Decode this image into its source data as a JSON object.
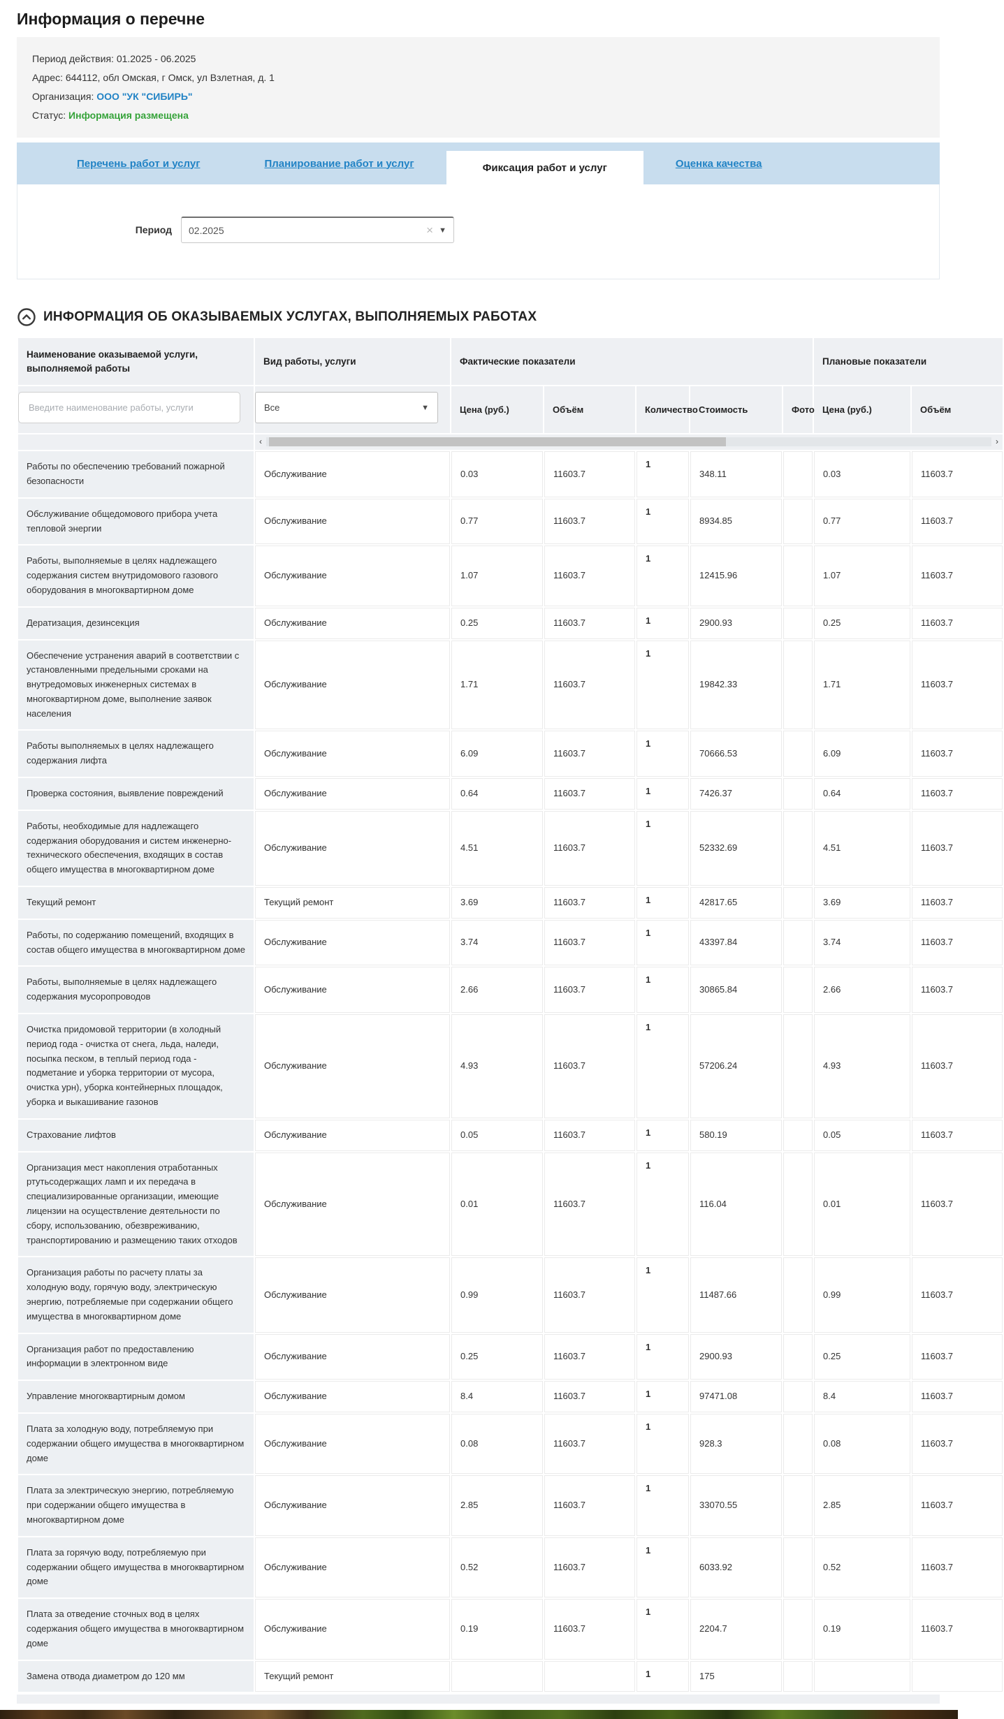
{
  "page": {
    "title": "Информация о перечне"
  },
  "info": {
    "period_label": "Период действия:",
    "period_value": "01.2025 - 06.2025",
    "address_label": "Адрес:",
    "address_value": "644112, обл Омская, г Омск, ул Взлетная, д. 1",
    "org_label": "Организация:",
    "org_value": "ООО \"УК \"СИБИРЬ\"",
    "status_label": "Статус:",
    "status_value": "Информация размещена"
  },
  "tabs": [
    {
      "label": "Перечень работ и услуг",
      "active": false
    },
    {
      "label": "Планирование работ и услуг",
      "active": false
    },
    {
      "label": "Фиксация работ и услуг",
      "active": true
    },
    {
      "label": "Оценка качества",
      "active": false
    }
  ],
  "period_filter": {
    "label": "Период",
    "value": "02.2025",
    "clear_icon": "×",
    "dropdown_icon": "▼"
  },
  "section": {
    "title": "ИНФОРМАЦИЯ ОБ ОКАЗЫВАЕМЫХ УСЛУГАХ, ВЫПОЛНЯЕМЫХ РАБОТАХ"
  },
  "colors": {
    "link_blue": "#2283c5",
    "status_green": "#36a33a",
    "tabbar_blue": "#c8ddee",
    "header_bg": "#eef0f3",
    "name_col_bg": "#edf0f3"
  },
  "table": {
    "col_name_header": "Наименование оказываемой услуги, выполняемой работы",
    "col_type_header": "Вид работы, услуги",
    "group_fact": "Фактические показатели",
    "group_plan": "Плановые показатели",
    "filter_placeholder": "Введите наименование работы, услуги",
    "filter_type_value": "Все",
    "sub_headers": [
      "Цена (руб.)",
      "Объём",
      "Количество",
      "Стоимость",
      "Фото",
      "Цена (руб.)",
      "Объём"
    ],
    "rows": [
      {
        "name": "Работы по обеспечению требований пожарной безопасности",
        "type": "Обслуживание",
        "fact_price": "0.03",
        "fact_volume": "11603.7",
        "quantity": "1",
        "cost": "348.11",
        "photo": "",
        "plan_price": "0.03",
        "plan_volume": "11603.7"
      },
      {
        "name": "Обслуживание общедомового прибора учета тепловой энергии",
        "type": "Обслуживание",
        "fact_price": "0.77",
        "fact_volume": "11603.7",
        "quantity": "1",
        "cost": "8934.85",
        "photo": "",
        "plan_price": "0.77",
        "plan_volume": "11603.7"
      },
      {
        "name": "Работы, выполняемые в целях надлежащего содержания систем внутридомового газового оборудования в многоквартирном доме",
        "type": "Обслуживание",
        "fact_price": "1.07",
        "fact_volume": "11603.7",
        "quantity": "1",
        "cost": "12415.96",
        "photo": "",
        "plan_price": "1.07",
        "plan_volume": "11603.7"
      },
      {
        "name": "Дератизация, дезинсекция",
        "type": "Обслуживание",
        "fact_price": "0.25",
        "fact_volume": "11603.7",
        "quantity": "1",
        "cost": "2900.93",
        "photo": "",
        "plan_price": "0.25",
        "plan_volume": "11603.7"
      },
      {
        "name": "Обеспечение устранения аварий в соответствии с установленными предельными сроками на внутредомовых инженерных системах в многоквартирном доме, выполнение заявок населения",
        "type": "Обслуживание",
        "fact_price": "1.71",
        "fact_volume": "11603.7",
        "quantity": "1",
        "cost": "19842.33",
        "photo": "",
        "plan_price": "1.71",
        "plan_volume": "11603.7"
      },
      {
        "name": "Работы выполняемых в целях надлежащего содержания лифта",
        "type": "Обслуживание",
        "fact_price": "6.09",
        "fact_volume": "11603.7",
        "quantity": "1",
        "cost": "70666.53",
        "photo": "",
        "plan_price": "6.09",
        "plan_volume": "11603.7"
      },
      {
        "name": "Проверка состояния, выявление повреждений",
        "type": "Обслуживание",
        "fact_price": "0.64",
        "fact_volume": "11603.7",
        "quantity": "1",
        "cost": "7426.37",
        "photo": "",
        "plan_price": "0.64",
        "plan_volume": "11603.7"
      },
      {
        "name": "Работы, необходимые для надлежащего содержания оборудования и систем инженерно-технического обеспечения, входящих в состав общего имущества в многоквартирном доме",
        "type": "Обслуживание",
        "fact_price": "4.51",
        "fact_volume": "11603.7",
        "quantity": "1",
        "cost": "52332.69",
        "photo": "",
        "plan_price": "4.51",
        "plan_volume": "11603.7"
      },
      {
        "name": "Текущий ремонт",
        "type": "Текущий ремонт",
        "fact_price": "3.69",
        "fact_volume": "11603.7",
        "quantity": "1",
        "cost": "42817.65",
        "photo": "",
        "plan_price": "3.69",
        "plan_volume": "11603.7"
      },
      {
        "name": "Работы, по содержанию помещений, входящих в состав общего имущества в многоквартирном доме",
        "type": "Обслуживание",
        "fact_price": "3.74",
        "fact_volume": "11603.7",
        "quantity": "1",
        "cost": "43397.84",
        "photo": "",
        "plan_price": "3.74",
        "plan_volume": "11603.7"
      },
      {
        "name": "Работы, выполняемые в целях надлежащего содержания мусоропроводов",
        "type": "Обслуживание",
        "fact_price": "2.66",
        "fact_volume": "11603.7",
        "quantity": "1",
        "cost": "30865.84",
        "photo": "",
        "plan_price": "2.66",
        "plan_volume": "11603.7"
      },
      {
        "name": "Очистка придомовой территории (в холодный период года - очистка от снега, льда, наледи, посыпка песком, в теплый период года - подметание и уборка территории от мусора, очистка урн), уборка контейнерных площадок, уборка и выкашивание газонов",
        "type": "Обслуживание",
        "fact_price": "4.93",
        "fact_volume": "11603.7",
        "quantity": "1",
        "cost": "57206.24",
        "photo": "",
        "plan_price": "4.93",
        "plan_volume": "11603.7"
      },
      {
        "name": "Страхование лифтов",
        "type": "Обслуживание",
        "fact_price": "0.05",
        "fact_volume": "11603.7",
        "quantity": "1",
        "cost": "580.19",
        "photo": "",
        "plan_price": "0.05",
        "plan_volume": "11603.7"
      },
      {
        "name": "Организация мест накопления отработанных ртутьсодержащих ламп и их передача в специализированные организации, имеющие лицензии на осуществление деятельности по сбору, использованию, обезвреживанию, транспортированию и размещению таких отходов",
        "type": "Обслуживание",
        "fact_price": "0.01",
        "fact_volume": "11603.7",
        "quantity": "1",
        "cost": "116.04",
        "photo": "",
        "plan_price": "0.01",
        "plan_volume": "11603.7"
      },
      {
        "name": "Организация работы по расчету платы за холодную воду, горячую воду, электрическую энергию, потребляемые при содержании общего имущества в многоквартирном доме",
        "type": "Обслуживание",
        "fact_price": "0.99",
        "fact_volume": "11603.7",
        "quantity": "1",
        "cost": "11487.66",
        "photo": "",
        "plan_price": "0.99",
        "plan_volume": "11603.7"
      },
      {
        "name": "Организация работ по предоставлению информации в электронном виде",
        "type": "Обслуживание",
        "fact_price": "0.25",
        "fact_volume": "11603.7",
        "quantity": "1",
        "cost": "2900.93",
        "photo": "",
        "plan_price": "0.25",
        "plan_volume": "11603.7"
      },
      {
        "name": "Управление многоквартирным домом",
        "type": "Обслуживание",
        "fact_price": "8.4",
        "fact_volume": "11603.7",
        "quantity": "1",
        "cost": "97471.08",
        "photo": "",
        "plan_price": "8.4",
        "plan_volume": "11603.7"
      },
      {
        "name": "Плата за холодную воду, потребляемую при содержании общего имущества в многоквартирном доме",
        "type": "Обслуживание",
        "fact_price": "0.08",
        "fact_volume": "11603.7",
        "quantity": "1",
        "cost": "928.3",
        "photo": "",
        "plan_price": "0.08",
        "plan_volume": "11603.7"
      },
      {
        "name": "Плата за электрическую энергию, потребляемую при содержании общего имущества в многоквартирном доме",
        "type": "Обслуживание",
        "fact_price": "2.85",
        "fact_volume": "11603.7",
        "quantity": "1",
        "cost": "33070.55",
        "photo": "",
        "plan_price": "2.85",
        "plan_volume": "11603.7"
      },
      {
        "name": "Плата за горячую воду, потребляемую при содержании общего имущества в многоквартирном доме",
        "type": "Обслуживание",
        "fact_price": "0.52",
        "fact_volume": "11603.7",
        "quantity": "1",
        "cost": "6033.92",
        "photo": "",
        "plan_price": "0.52",
        "plan_volume": "11603.7"
      },
      {
        "name": "Плата за отведение сточных вод в целях содержания общего имущества в многоквартирном доме",
        "type": "Обслуживание",
        "fact_price": "0.19",
        "fact_volume": "11603.7",
        "quantity": "1",
        "cost": "2204.7",
        "photo": "",
        "plan_price": "0.19",
        "plan_volume": "11603.7"
      },
      {
        "name": "Замена отвода диаметром до 120 мм",
        "type": "Текущий ремонт",
        "fact_price": "",
        "fact_volume": "",
        "quantity": "1",
        "cost": "175",
        "photo": "",
        "plan_price": "",
        "plan_volume": ""
      }
    ]
  }
}
